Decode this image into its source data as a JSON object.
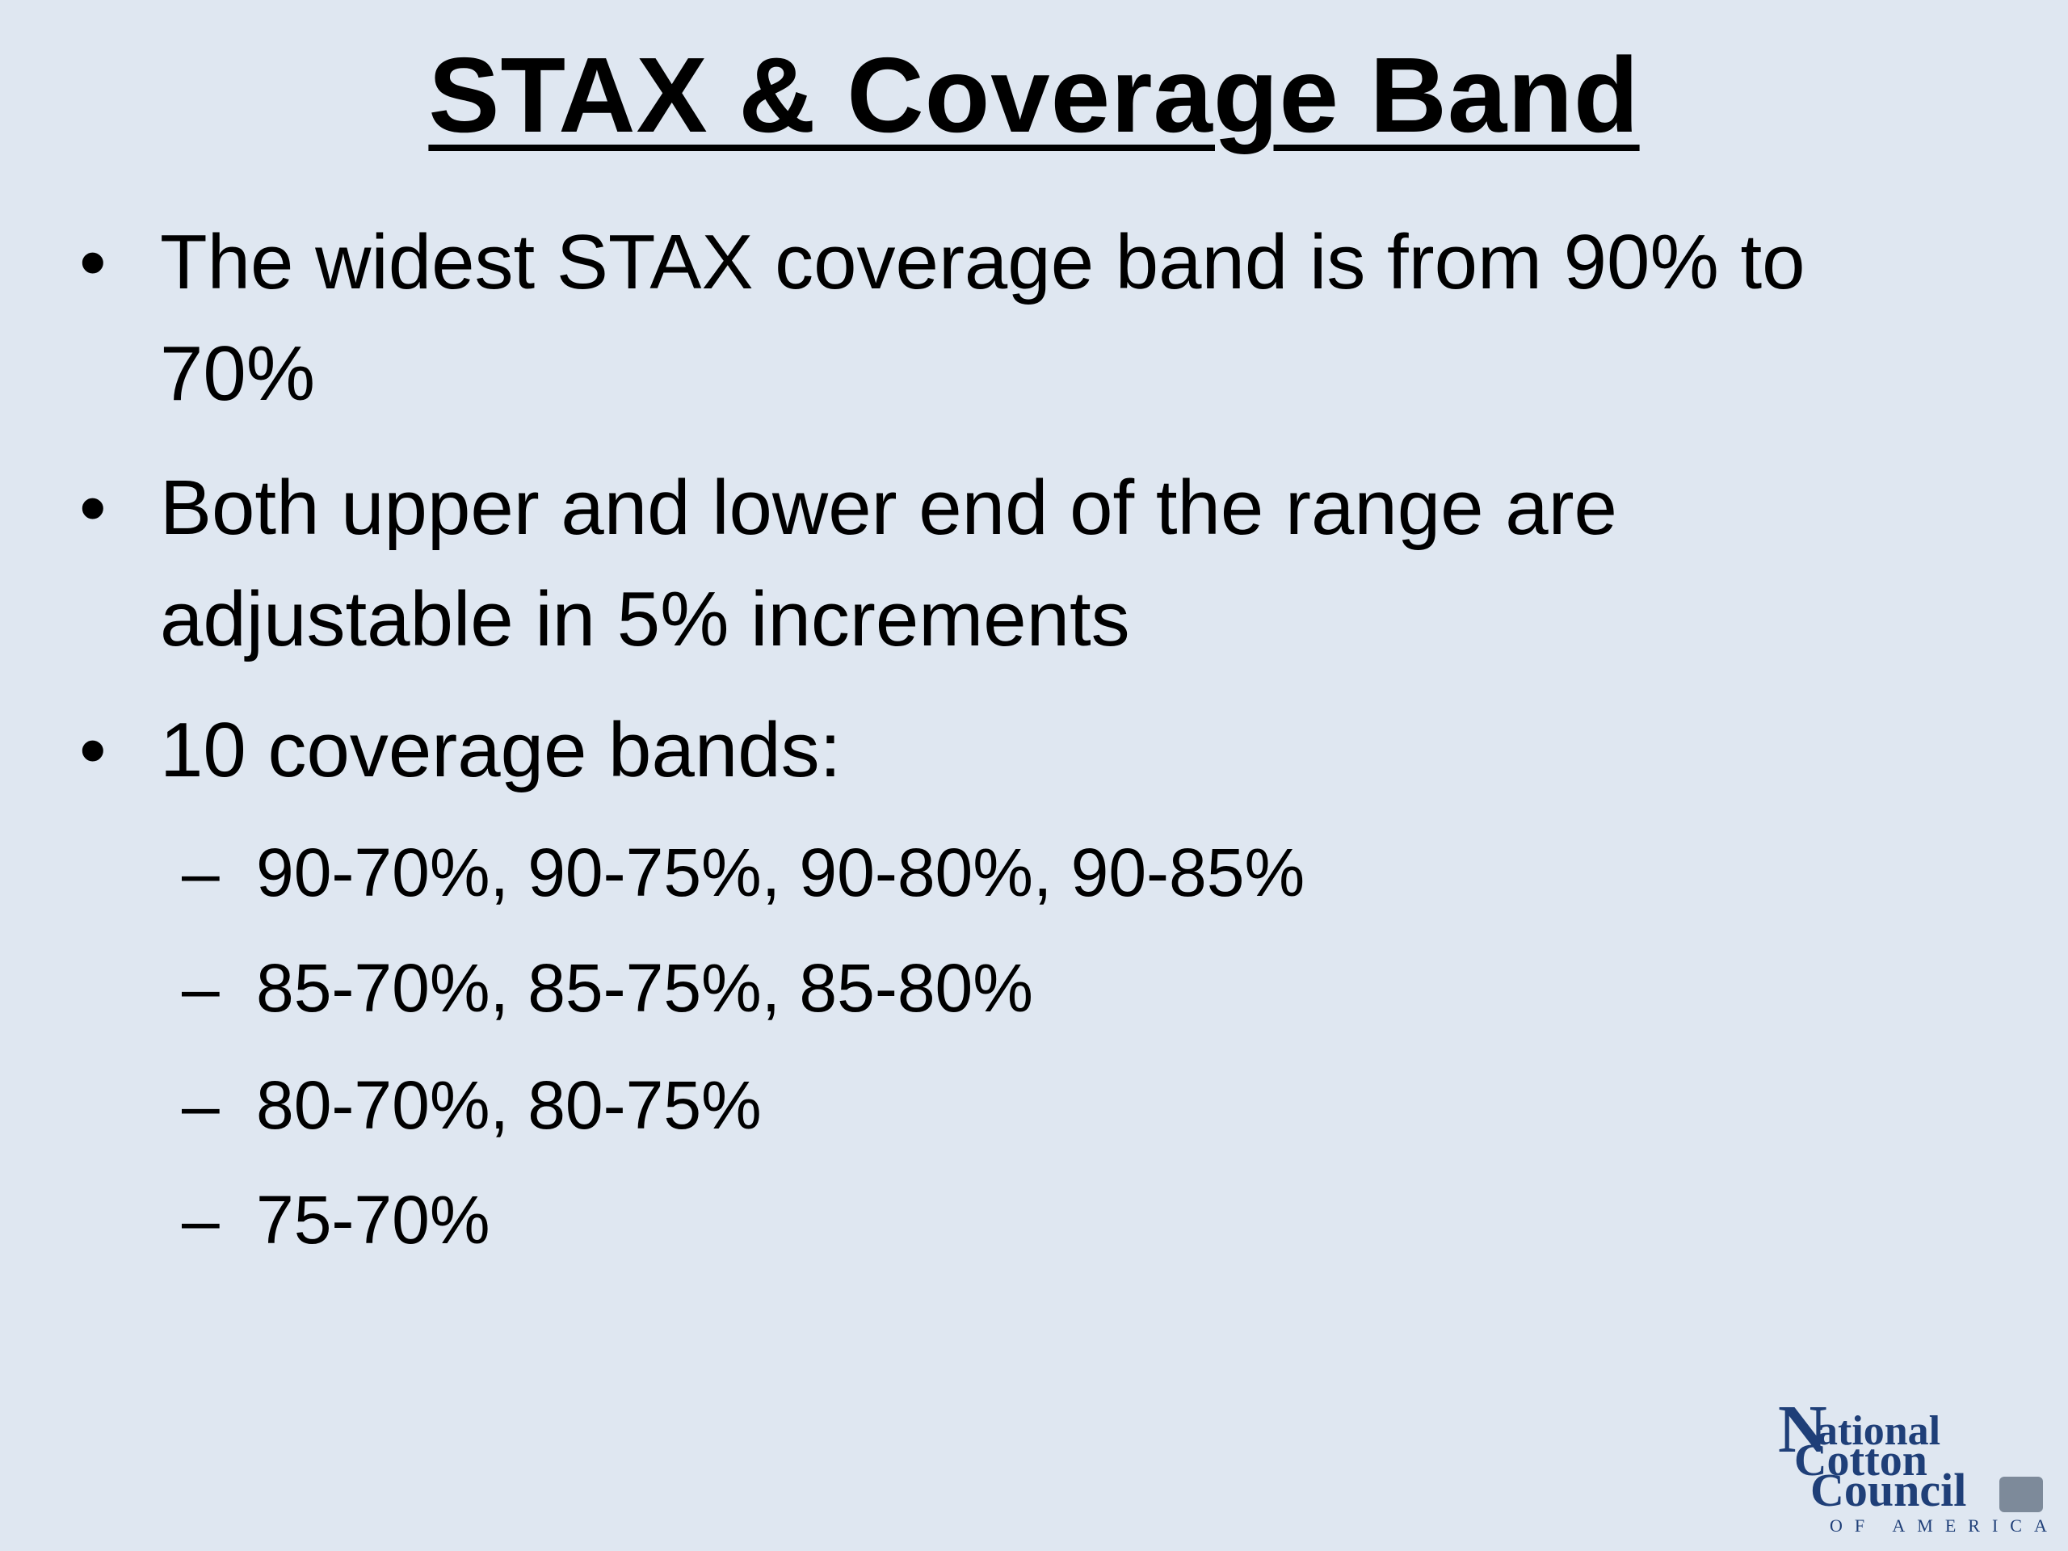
{
  "slide": {
    "title": "STAX & Coverage Band",
    "bullets": [
      {
        "marker": "•",
        "text": "The widest STAX coverage band is from 90% to 70%"
      },
      {
        "marker": "•",
        "text": "Both upper and lower end of the range are adjustable in 5% increments"
      },
      {
        "marker": "•",
        "text": "10 coverage bands:"
      }
    ],
    "sub_bullets": [
      {
        "marker": "–",
        "text": "90-70%, 90-75%, 90-80%, 90-85%"
      },
      {
        "marker": "–",
        "text": "85-70%, 85-75%, 85-80%"
      },
      {
        "marker": "–",
        "text": "80-70%, 80-75%"
      },
      {
        "marker": "–",
        "text": "75-70%"
      }
    ]
  },
  "logo": {
    "letter_n": "N",
    "line1": "ational",
    "line2": "Cotton",
    "line3": "Council",
    "tagline": "OF AMERICA"
  },
  "colors": {
    "background": "#dfe7f1",
    "text": "#000000",
    "logo": "#1f3f78"
  }
}
